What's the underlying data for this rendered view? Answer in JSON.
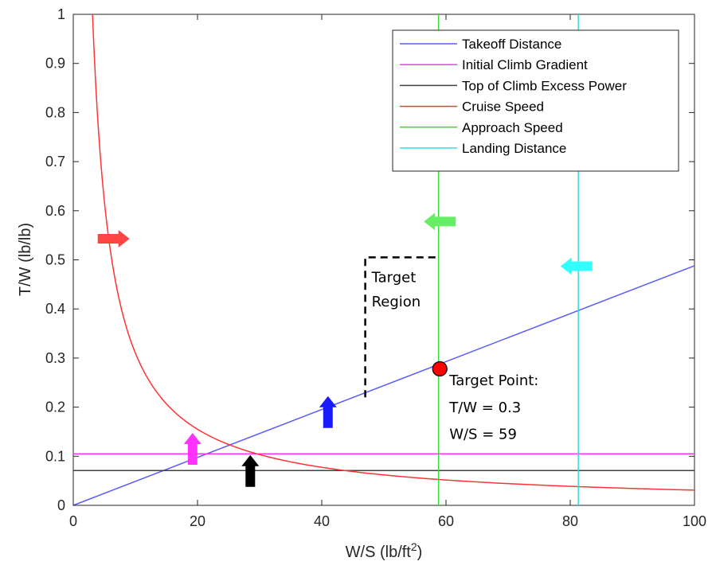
{
  "chart_data": {
    "type": "line",
    "xlabel": "W/S (lb/ft",
    "xlabel_sup": "2",
    "xlabel_end": ")",
    "ylabel": "T/W (lb/lb)",
    "xlim": [
      0,
      100
    ],
    "ylim": [
      0,
      1
    ],
    "x_ticks": [
      "0",
      "20",
      "40",
      "60",
      "80",
      "100"
    ],
    "y_ticks": [
      "0",
      "0.1",
      "0.2",
      "0.3",
      "0.4",
      "0.5",
      "0.6",
      "0.7",
      "0.8",
      "0.9",
      "1"
    ],
    "grid": false,
    "legend_position": "top-right",
    "series": [
      {
        "name": "Takeoff Distance",
        "color": "#5b5bff",
        "kind": "line",
        "slope": 0.00488
      },
      {
        "name": "Initial Climb Gradient",
        "color": "#ff33ff",
        "kind": "horizontal",
        "value": 0.105
      },
      {
        "name": "Top of Climb Excess Power",
        "color": "#404040",
        "kind": "horizontal",
        "value": 0.071
      },
      {
        "name": "Cruise Speed",
        "color": "#ff3333",
        "kind": "hyperbola",
        "k": 3.1
      },
      {
        "name": "Approach Speed",
        "color": "#33dd33",
        "kind": "vertical",
        "value": 58.8
      },
      {
        "name": "Landing Distance",
        "color": "#33dddd",
        "kind": "vertical",
        "value": 81.3
      }
    ],
    "annotations": {
      "target_region_line1": "Target",
      "target_region_line2": "Region",
      "target_point_line1": "Target Point:",
      "target_point_line2": "T/W = 0.3",
      "target_point_line3": "W/S = 59",
      "target_point": {
        "x": 59,
        "y": 0.278
      },
      "target_box": {
        "x_left": 47,
        "x_right": 59,
        "y_bottom": 0.22,
        "y_top": 0.505
      }
    },
    "arrows": [
      {
        "color": "#ff4444",
        "x": 6.5,
        "y": 0.543,
        "direction": "right"
      },
      {
        "color": "#66ee66",
        "x": 59,
        "y": 0.578,
        "direction": "left"
      },
      {
        "color": "#33ffff",
        "x": 81,
        "y": 0.487,
        "direction": "left"
      },
      {
        "color": "#1a1aff",
        "x": 41,
        "y": 0.19,
        "direction": "up"
      },
      {
        "color": "#ff33ff",
        "x": 19.2,
        "y": 0.115,
        "direction": "up"
      },
      {
        "color": "#000000",
        "x": 28.5,
        "y": 0.07,
        "direction": "up"
      }
    ]
  }
}
